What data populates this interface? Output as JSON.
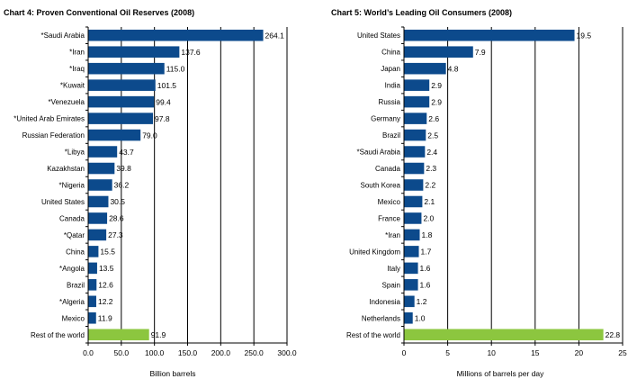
{
  "colors": {
    "primary_bar": "#0c4a8c",
    "highlight_bar": "#8cc63f",
    "axis": "#000000",
    "grid": "#000000"
  },
  "chart_data": [
    {
      "type": "bar",
      "orientation": "horizontal",
      "title": "Chart 4:  Proven Conventional Oil Reserves (2008)",
      "xlabel": "Billion barrels",
      "ylabel": "",
      "xlim": [
        0,
        300
      ],
      "ticks": [
        0,
        50,
        100,
        150,
        200,
        250,
        300
      ],
      "tick_labels": [
        "0.0",
        "50.0",
        "100.0",
        "150.0",
        "200.0",
        "250.0",
        "300.0"
      ],
      "grid": true,
      "categories": [
        "*Saudi Arabia",
        "*Iran",
        "*Iraq",
        "*Kuwait",
        "*Venezuela",
        "*United Arab Emirates",
        "Russian Federation",
        "*Libya",
        "Kazakhstan",
        "*Nigeria",
        "United States",
        "Canada",
        "*Qatar",
        "China",
        "*Angola",
        "Brazil",
        "*Algeria",
        "Mexico",
        "Rest of the world"
      ],
      "values": [
        264.1,
        137.6,
        115.0,
        101.5,
        99.4,
        97.8,
        79.0,
        43.7,
        39.8,
        36.2,
        30.5,
        28.6,
        27.3,
        15.5,
        13.5,
        12.6,
        12.2,
        11.9,
        91.9
      ],
      "value_labels": [
        "264.1",
        "137.6",
        "115.0",
        "101.5",
        "99.4",
        "97.8",
        "79.0",
        "43.7",
        "39.8",
        "36.2",
        "30.5",
        "28.6",
        "27.3",
        "15.5",
        "13.5",
        "12.6",
        "12.2",
        "11.9",
        "91.9"
      ],
      "highlight_index": 18
    },
    {
      "type": "bar",
      "orientation": "horizontal",
      "title": "Chart 5:  World’s Leading Oil Consumers (2008)",
      "xlabel": "Millions of barrels per day",
      "ylabel": "",
      "xlim": [
        0,
        25
      ],
      "ticks": [
        0,
        5,
        10,
        15,
        20,
        25
      ],
      "tick_labels": [
        "0",
        "5",
        "10",
        "15",
        "20",
        "25"
      ],
      "grid": true,
      "categories": [
        "United States",
        "China",
        "Japan",
        "India",
        "Russia",
        "Germany",
        "Brazil",
        "*Saudi Arabia",
        "Canada",
        "South Korea",
        "Mexico",
        "France",
        "*Iran",
        "United Kingdom",
        "Italy",
        "Spain",
        "Indonesia",
        "Netherlands",
        "Rest of the world"
      ],
      "values": [
        19.5,
        7.9,
        4.8,
        2.9,
        2.9,
        2.6,
        2.5,
        2.4,
        2.3,
        2.2,
        2.1,
        2.0,
        1.8,
        1.7,
        1.6,
        1.6,
        1.2,
        1.0,
        22.8
      ],
      "value_labels": [
        "19.5",
        "7.9",
        "4.8",
        "2.9",
        "2.9",
        "2.6",
        "2.5",
        "2.4",
        "2.3",
        "2.2",
        "2.1",
        "2.0",
        "1.8",
        "1.7",
        "1.6",
        "1.6",
        "1.2",
        "1.0",
        "22.8"
      ],
      "highlight_index": 18
    }
  ]
}
